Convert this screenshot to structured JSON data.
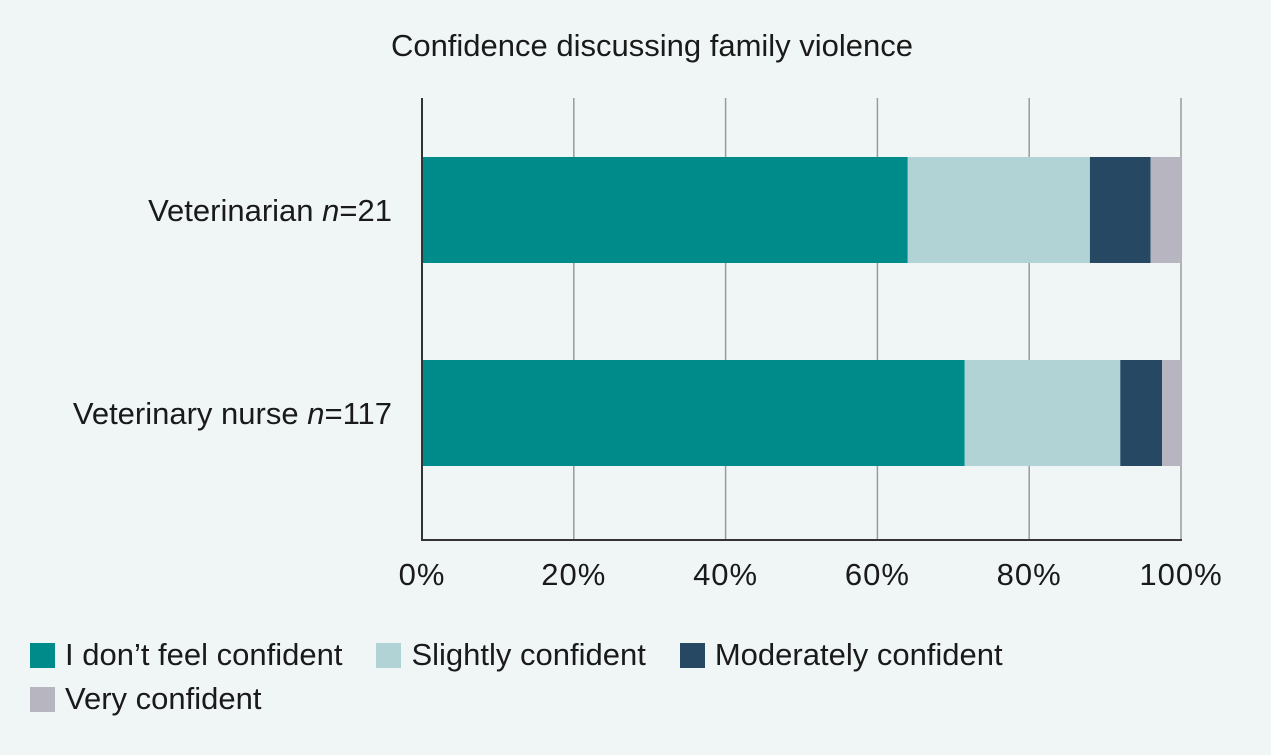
{
  "chart_data": {
    "type": "bar",
    "orientation": "horizontal",
    "stacked": true,
    "title": "Confidence discussing family violence",
    "categories": [
      {
        "label": "Veterinarian ",
        "n_prefix": "n",
        "n_suffix": "=21"
      },
      {
        "label": "Veterinary nurse ",
        "n_prefix": "n",
        "n_suffix": "=117"
      }
    ],
    "series": [
      {
        "name": "I don’t feel confident",
        "color": "#008b8b",
        "values": [
          64,
          71.5
        ]
      },
      {
        "name": "Slightly confident",
        "color": "#b2d3d6",
        "values": [
          24,
          20.5
        ]
      },
      {
        "name": "Moderately confident",
        "color": "#264863",
        "values": [
          8,
          5.5
        ]
      },
      {
        "name": "Very confident",
        "color": "#b7b5bf",
        "values": [
          4,
          2.5
        ]
      }
    ],
    "xlim": [
      0,
      100
    ],
    "xticks": [
      "0%",
      "20%",
      "40%",
      "60%",
      "80%",
      "100%"
    ],
    "grid": true,
    "legend_position": "bottom"
  }
}
